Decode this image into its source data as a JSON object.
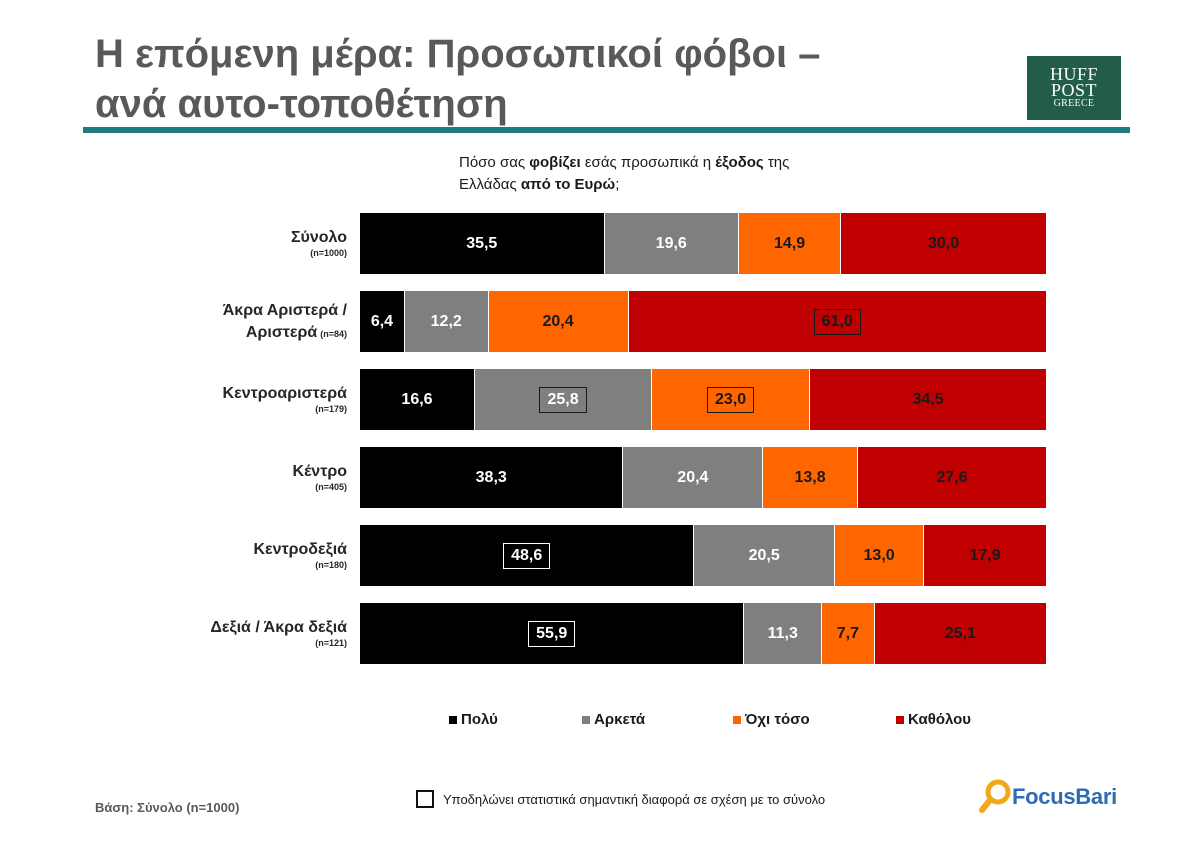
{
  "title": {
    "line1": "Η επόμενη μέρα: Προσωπικοί φόβοι –",
    "line2": "ανά αυτο-τοποθέτηση"
  },
  "logo": {
    "huff": "HUFF",
    "post": "POST",
    "greece": "GREECE"
  },
  "question": {
    "segments": [
      "Πόσο σας ",
      "φοβίζει",
      " εσάς προσωπικά η ",
      "έξοδος",
      " της",
      "Ελλάδας ",
      "από το Ευρώ",
      ";"
    ]
  },
  "colors": {
    "title": "#595959",
    "rule": "#1d7c7f",
    "logo_bg": "#225d48",
    "brand": "#2b6cb5",
    "brand_icon": "#f2a71b"
  },
  "chart_data": {
    "type": "bar",
    "orientation": "horizontal",
    "stacking": "100%",
    "xlim": [
      0,
      100
    ],
    "grid": false,
    "legend_position": "bottom",
    "categories": [
      "Σύνολο",
      "Άκρα Αριστερά / Αριστερά",
      "Κεντροαριστερά",
      "Κέντρο",
      "Κεντροδεξιά",
      "Δεξιά / Άκρα δεξιά"
    ],
    "sample_sizes": [
      "(n=1000)",
      "(n=84)",
      "(n=179)",
      "(n=405)",
      "(n=180)",
      "(n=121)"
    ],
    "series": [
      {
        "name": "Πολύ",
        "color": "#000000",
        "label_color": "#ffffff",
        "highlight_border": "#ffffff",
        "values": [
          35.5,
          6.4,
          16.6,
          38.3,
          48.6,
          55.9
        ],
        "labels": [
          "35,5",
          "6,4",
          "16,6",
          "38,3",
          "48,6",
          "55,9"
        ],
        "significant": [
          false,
          false,
          false,
          false,
          true,
          true
        ]
      },
      {
        "name": "Αρκετά",
        "color": "#7f7f7f",
        "label_color": "#ffffff",
        "highlight_border": "#1a1a1a",
        "values": [
          19.6,
          12.2,
          25.8,
          20.4,
          20.5,
          11.3
        ],
        "labels": [
          "19,6",
          "12,2",
          "25,8",
          "20,4",
          "20,5",
          "11,3"
        ],
        "significant": [
          false,
          false,
          true,
          false,
          false,
          false
        ]
      },
      {
        "name": "Όχι τόσο",
        "color": "#ff6600",
        "label_color": "#1a1a1a",
        "highlight_border": "#1a1a1a",
        "values": [
          14.9,
          20.4,
          23.0,
          13.8,
          13.0,
          7.7
        ],
        "labels": [
          "14,9",
          "20,4",
          "23,0",
          "13,8",
          "13,0",
          "7,7"
        ],
        "significant": [
          false,
          false,
          true,
          false,
          false,
          false
        ]
      },
      {
        "name": "Καθόλου",
        "color": "#c00000",
        "label_color": "#1a1a1a",
        "highlight_border": "#1a1a1a",
        "values": [
          30.0,
          61.0,
          34.5,
          27.6,
          17.9,
          25.1
        ],
        "labels": [
          "30,0",
          "61,0",
          "34,5",
          "27,6",
          "17,9",
          "25,1"
        ],
        "significant": [
          false,
          true,
          false,
          false,
          false,
          false
        ]
      }
    ]
  },
  "footer": {
    "base": "Βάση: Σύνολο (n=1000)",
    "significance_note": "Υποδηλώνει στατιστικά σημαντική διαφορά σε σχέση με το σύνολο",
    "brand": {
      "focus": "Focus",
      "bari": "Bari"
    }
  }
}
